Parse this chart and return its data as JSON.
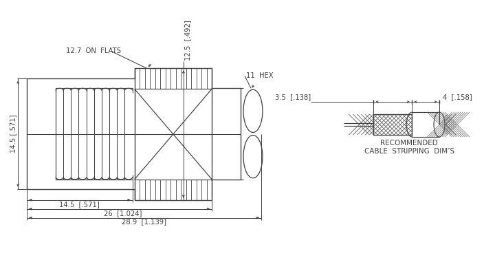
{
  "bg_color": "#ffffff",
  "lc": "#404040",
  "fig_w": 7.2,
  "fig_h": 3.91,
  "dpi": 100,
  "ann": {
    "flats": "12.7  ON  FLATS",
    "hex": "11  HEX",
    "dim_v_hex": "12.5  [.492]",
    "dim_v_left": "14.5 [.571]",
    "dim_b1": "14.5  [.571]",
    "dim_b2": "26  [1.024]",
    "dim_b3": "28.9  [1.139]",
    "cable_d1": "3.5  [.138]",
    "cable_d2": "4  [.158]",
    "rec1": "RECOMMENDED",
    "rec2": "CABLE  STRIPPING  DIM’S"
  }
}
